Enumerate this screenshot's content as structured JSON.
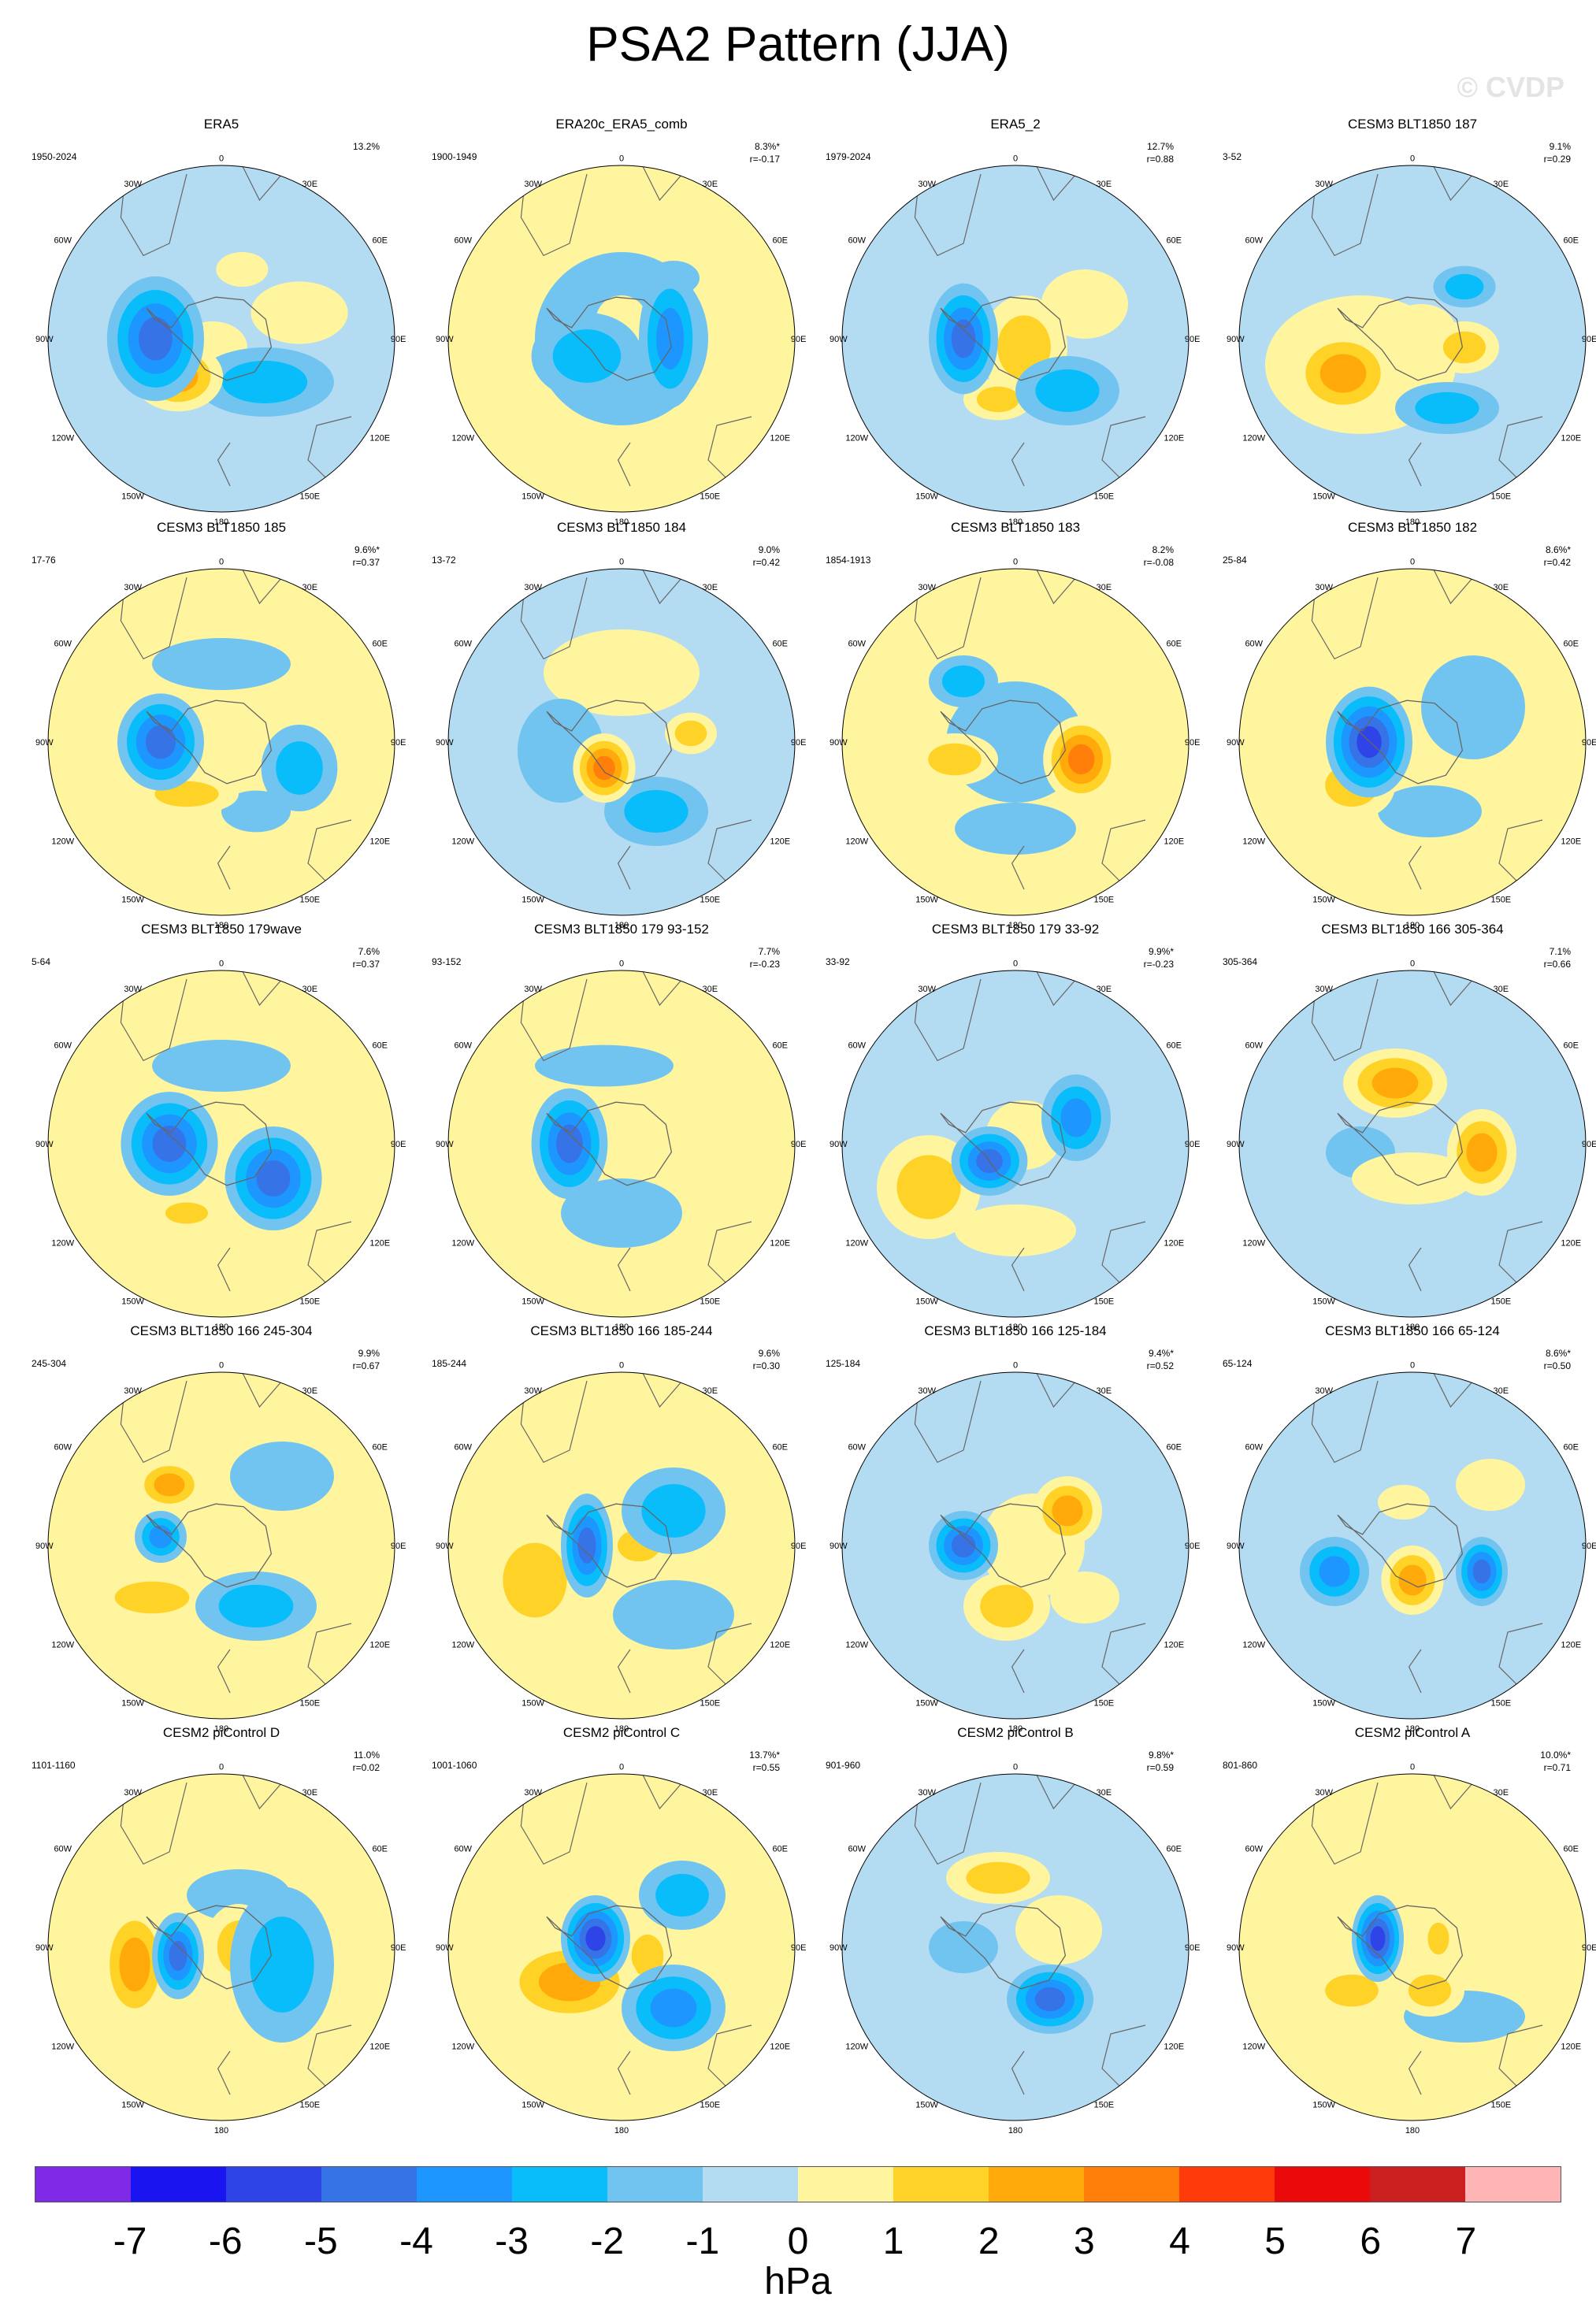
{
  "title": "PSA2 Pattern (JJA)",
  "watermark": "© CVDP",
  "units": "hPa",
  "colorbar": {
    "ticks": [
      "-7",
      "-6",
      "-5",
      "-4",
      "-3",
      "-2",
      "-1",
      "0",
      "1",
      "2",
      "3",
      "4",
      "5",
      "6",
      "7"
    ],
    "colors": [
      "#7f2ae6",
      "#1a14f0",
      "#2e44e6",
      "#3573e6",
      "#1e96ff",
      "#08bdfa",
      "#72c4f0",
      "#b3dcf3",
      "#fff59e",
      "#ffd227",
      "#ffa90a",
      "#ff7f0a",
      "#ff3b0a",
      "#eb0a0a",
      "#cc2020",
      "#ffb5b5"
    ]
  },
  "map_labels": {
    "lon_top": "0",
    "lon_30w": "30W",
    "lon_30e": "30E",
    "lon_60w": "60W",
    "lon_60e": "60E",
    "lon_90w": "90W",
    "lon_90e": "90E",
    "lon_120w": "120W",
    "lon_120e": "120E",
    "lon_150w": "150W",
    "lon_150e": "150E",
    "lon_bottom": "180"
  },
  "panels": [
    {
      "title": "ERA5",
      "period": "1950-2024",
      "variance": "13.2%",
      "r": "",
      "bg": "#b3dcf3",
      "blobs": [
        [
          -0.38,
          0.0,
          0.28,
          0.36,
          -4
        ],
        [
          -0.25,
          0.22,
          0.26,
          0.2,
          3
        ],
        [
          0.25,
          0.25,
          0.4,
          0.2,
          -2
        ],
        [
          0.12,
          -0.4,
          0.15,
          0.1,
          1
        ],
        [
          0.45,
          -0.15,
          0.28,
          0.18,
          1
        ],
        [
          -0.05,
          0.05,
          0.2,
          0.15,
          1
        ]
      ]
    },
    {
      "title": "ERA20c_ERA5_comb",
      "period": "1900-1949",
      "variance": "8.3%*",
      "r": "r=-0.17",
      "bg": "#fff59e",
      "blobs": [
        [
          0.28,
          0.0,
          0.18,
          0.4,
          -3
        ],
        [
          -0.2,
          0.1,
          0.32,
          0.25,
          -2
        ],
        [
          0.0,
          0.0,
          0.5,
          0.5,
          -1
        ],
        [
          0.0,
          -0.1,
          0.15,
          0.15,
          1
        ],
        [
          0.3,
          -0.35,
          0.15,
          0.1,
          -1
        ]
      ]
    },
    {
      "title": "ERA5_2",
      "period": "1979-2024",
      "variance": "12.7%",
      "r": "r=0.88",
      "bg": "#b3dcf3",
      "blobs": [
        [
          -0.3,
          0.0,
          0.2,
          0.32,
          -4
        ],
        [
          0.05,
          0.05,
          0.25,
          0.3,
          2
        ],
        [
          -0.1,
          0.35,
          0.2,
          0.12,
          2
        ],
        [
          0.3,
          0.3,
          0.3,
          0.2,
          -2
        ],
        [
          0.4,
          -0.2,
          0.25,
          0.2,
          1
        ]
      ]
    },
    {
      "title": "CESM3 BLT1850 187",
      "period": "3-52",
      "variance": "9.1%",
      "r": "r=0.29",
      "bg": "#b3dcf3",
      "blobs": [
        [
          -0.4,
          0.2,
          0.3,
          0.25,
          3
        ],
        [
          -0.3,
          0.15,
          0.55,
          0.4,
          1
        ],
        [
          0.3,
          0.05,
          0.2,
          0.15,
          2
        ],
        [
          0.3,
          -0.3,
          0.18,
          0.12,
          -2
        ],
        [
          0.2,
          0.4,
          0.3,
          0.15,
          -2
        ],
        [
          0.05,
          -0.05,
          0.2,
          0.15,
          1
        ]
      ]
    },
    {
      "title": "CESM3 BLT1850 185",
      "period": "17-76",
      "variance": "9.6%*",
      "r": "r=0.37",
      "bg": "#fff59e",
      "blobs": [
        [
          -0.35,
          0.0,
          0.25,
          0.28,
          -4
        ],
        [
          0.45,
          0.15,
          0.22,
          0.25,
          -2
        ],
        [
          -0.2,
          0.3,
          0.3,
          0.12,
          2
        ],
        [
          0.0,
          -0.45,
          0.4,
          0.15,
          -1
        ],
        [
          0.2,
          0.4,
          0.2,
          0.12,
          -1
        ]
      ]
    },
    {
      "title": "CESM3 BLT1850 184",
      "period": "13-72",
      "variance": "9.0%",
      "r": "r=0.42",
      "bg": "#b3dcf3",
      "blobs": [
        [
          -0.1,
          0.15,
          0.18,
          0.2,
          4
        ],
        [
          0.0,
          -0.4,
          0.45,
          0.25,
          1
        ],
        [
          0.4,
          -0.05,
          0.15,
          0.12,
          2
        ],
        [
          0.2,
          0.4,
          0.3,
          0.2,
          -2
        ],
        [
          -0.35,
          0.05,
          0.25,
          0.3,
          -1
        ]
      ]
    },
    {
      "title": "CESM3 BLT1850 183",
      "period": "1854-1913",
      "variance": "8.2%",
      "r": "r=-0.08",
      "bg": "#fff59e",
      "blobs": [
        [
          0.38,
          0.1,
          0.22,
          0.25,
          4
        ],
        [
          -0.3,
          -0.35,
          0.2,
          0.15,
          -2
        ],
        [
          -0.35,
          0.1,
          0.25,
          0.15,
          2
        ],
        [
          0.0,
          0.5,
          0.35,
          0.15,
          -1
        ],
        [
          0.0,
          0.0,
          0.4,
          0.35,
          -1
        ]
      ]
    },
    {
      "title": "CESM3 BLT1850 182",
      "period": "25-84",
      "variance": "8.6%*",
      "r": "r=0.42",
      "bg": "#fff59e",
      "blobs": [
        [
          -0.25,
          0.0,
          0.25,
          0.32,
          -5
        ],
        [
          -0.35,
          0.25,
          0.25,
          0.2,
          2
        ],
        [
          0.35,
          -0.2,
          0.3,
          0.3,
          -1
        ],
        [
          0.1,
          0.4,
          0.3,
          0.15,
          -1
        ]
      ]
    },
    {
      "title": "CESM3 BLT1850 179wave",
      "period": "5-64",
      "variance": "7.6%",
      "r": "r=0.37",
      "bg": "#fff59e",
      "blobs": [
        [
          -0.3,
          0.0,
          0.28,
          0.3,
          -4
        ],
        [
          0.3,
          0.2,
          0.28,
          0.3,
          -4
        ],
        [
          -0.2,
          0.4,
          0.2,
          0.1,
          2
        ],
        [
          0.0,
          -0.45,
          0.4,
          0.15,
          -1
        ]
      ]
    },
    {
      "title": "CESM3 BLT1850 179 93-152",
      "period": "93-152",
      "variance": "7.7%",
      "r": "r=-0.23",
      "bg": "#fff59e",
      "blobs": [
        [
          -0.3,
          0.0,
          0.22,
          0.32,
          -4
        ],
        [
          0.3,
          -0.25,
          0.12,
          0.12,
          1
        ],
        [
          0.0,
          0.4,
          0.35,
          0.2,
          -1
        ],
        [
          -0.1,
          -0.45,
          0.4,
          0.12,
          -1
        ]
      ]
    },
    {
      "title": "CESM3 BLT1850 179 33-92",
      "period": "33-92",
      "variance": "9.9%*",
      "r": "r=-0.23",
      "bg": "#b3dcf3",
      "blobs": [
        [
          -0.15,
          0.1,
          0.22,
          0.2,
          -4
        ],
        [
          0.35,
          -0.15,
          0.2,
          0.25,
          -3
        ],
        [
          -0.5,
          0.25,
          0.3,
          0.3,
          2
        ],
        [
          0.05,
          -0.05,
          0.22,
          0.2,
          1
        ],
        [
          0.0,
          0.5,
          0.35,
          0.15,
          1
        ]
      ]
    },
    {
      "title": "CESM3 BLT1850 166 305-364",
      "period": "305-364",
      "variance": "7.1%",
      "r": "r=0.66",
      "bg": "#b3dcf3",
      "blobs": [
        [
          -0.1,
          -0.35,
          0.3,
          0.2,
          3
        ],
        [
          0.4,
          0.05,
          0.2,
          0.25,
          3
        ],
        [
          -0.3,
          0.05,
          0.2,
          0.15,
          -1
        ],
        [
          0.0,
          0.2,
          0.35,
          0.15,
          1
        ]
      ]
    },
    {
      "title": "CESM3 BLT1850 166 245-304",
      "period": "245-304",
      "variance": "9.9%",
      "r": "r=0.67",
      "bg": "#fff59e",
      "blobs": [
        [
          -0.3,
          -0.35,
          0.2,
          0.15,
          3
        ],
        [
          -0.35,
          -0.05,
          0.15,
          0.15,
          -3
        ],
        [
          -0.4,
          0.3,
          0.35,
          0.15,
          2
        ],
        [
          0.2,
          0.35,
          0.35,
          0.2,
          -2
        ],
        [
          0.35,
          -0.4,
          0.3,
          0.2,
          -1
        ]
      ]
    },
    {
      "title": "CESM3 BLT1850 166 185-244",
      "period": "185-244",
      "variance": "9.6%",
      "r": "r=0.30",
      "bg": "#fff59e",
      "blobs": [
        [
          -0.2,
          0.0,
          0.15,
          0.3,
          -4
        ],
        [
          0.1,
          0.0,
          0.2,
          0.15,
          2
        ],
        [
          -0.5,
          0.2,
          0.3,
          0.35,
          2
        ],
        [
          0.3,
          -0.2,
          0.3,
          0.25,
          -2
        ],
        [
          0.3,
          0.4,
          0.35,
          0.2,
          -1
        ]
      ]
    },
    {
      "title": "CESM3 BLT1850 166 125-184",
      "period": "125-184",
      "variance": "9.4%*",
      "r": "r=0.52",
      "bg": "#b3dcf3",
      "blobs": [
        [
          -0.3,
          0.0,
          0.2,
          0.2,
          -4
        ],
        [
          0.3,
          -0.2,
          0.2,
          0.2,
          3
        ],
        [
          -0.05,
          0.35,
          0.25,
          0.2,
          2
        ],
        [
          0.1,
          0.0,
          0.3,
          0.3,
          1
        ],
        [
          0.4,
          0.3,
          0.2,
          0.15,
          1
        ]
      ]
    },
    {
      "title": "CESM3 BLT1850 166 65-124",
      "period": "65-124",
      "variance": "8.6%*",
      "r": "r=0.50",
      "bg": "#b3dcf3",
      "blobs": [
        [
          -0.45,
          0.15,
          0.2,
          0.2,
          -3
        ],
        [
          0.4,
          0.15,
          0.15,
          0.2,
          -4
        ],
        [
          0.0,
          0.2,
          0.18,
          0.2,
          3
        ],
        [
          0.45,
          -0.35,
          0.2,
          0.15,
          1
        ],
        [
          -0.05,
          -0.25,
          0.15,
          0.1,
          1
        ]
      ]
    },
    {
      "title": "CESM2 piControl D",
      "period": "1101-1160",
      "variance": "11.0%",
      "r": "r=0.02",
      "bg": "#fff59e",
      "blobs": [
        [
          -0.25,
          0.05,
          0.15,
          0.25,
          -4
        ],
        [
          -0.5,
          0.1,
          0.2,
          0.35,
          3
        ],
        [
          0.1,
          0.0,
          0.2,
          0.25,
          2
        ],
        [
          0.35,
          0.1,
          0.3,
          0.45,
          -2
        ],
        [
          0.1,
          -0.3,
          0.3,
          0.15,
          -1
        ]
      ]
    },
    {
      "title": "CESM2 piControl C",
      "period": "1001-1060",
      "variance": "13.7%*",
      "r": "r=0.55",
      "bg": "#fff59e",
      "blobs": [
        [
          -0.15,
          -0.05,
          0.2,
          0.25,
          -5
        ],
        [
          -0.3,
          0.2,
          0.4,
          0.25,
          3
        ],
        [
          0.35,
          -0.3,
          0.25,
          0.2,
          -2
        ],
        [
          0.3,
          0.35,
          0.3,
          0.25,
          -3
        ],
        [
          0.15,
          0.05,
          0.15,
          0.2,
          2
        ]
      ]
    },
    {
      "title": "CESM2 piControl B",
      "period": "901-960",
      "variance": "9.8%*",
      "r": "r=0.59",
      "bg": "#b3dcf3",
      "blobs": [
        [
          -0.1,
          -0.4,
          0.3,
          0.15,
          2
        ],
        [
          0.2,
          0.3,
          0.25,
          0.2,
          -4
        ],
        [
          -0.3,
          0.0,
          0.2,
          0.15,
          -1
        ],
        [
          0.25,
          -0.1,
          0.25,
          0.2,
          1
        ]
      ]
    },
    {
      "title": "CESM2 piControl A",
      "period": "801-860",
      "variance": "10.0%*",
      "r": "r=0.71",
      "bg": "#fff59e",
      "blobs": [
        [
          -0.2,
          -0.05,
          0.15,
          0.25,
          -5
        ],
        [
          -0.35,
          0.25,
          0.25,
          0.15,
          2
        ],
        [
          0.1,
          0.25,
          0.2,
          0.15,
          2
        ],
        [
          0.15,
          -0.05,
          0.1,
          0.15,
          2
        ],
        [
          0.3,
          0.4,
          0.35,
          0.15,
          -1
        ]
      ]
    }
  ]
}
